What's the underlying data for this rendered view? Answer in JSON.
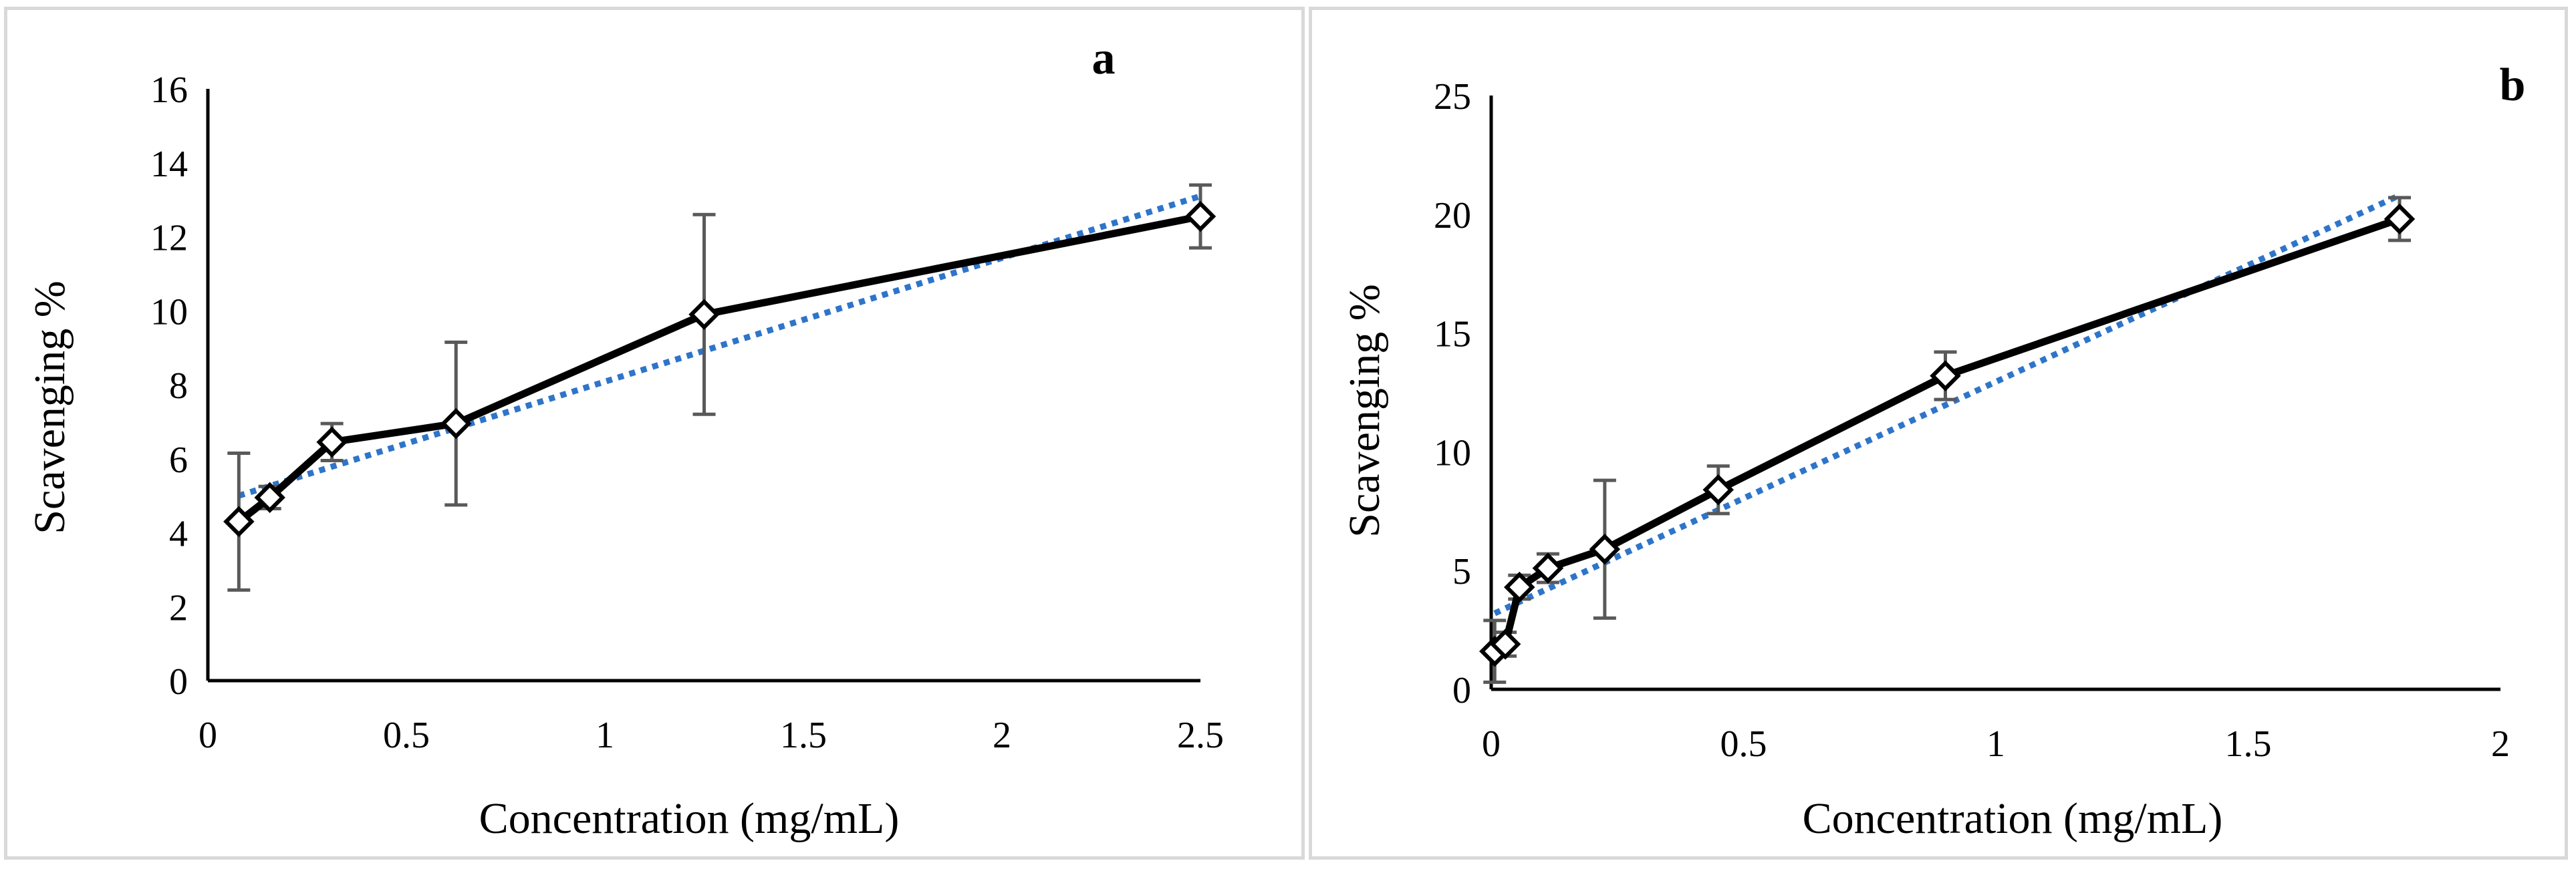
{
  "chart_data": [
    {
      "type": "line",
      "panel_label": "a",
      "title": "",
      "xlabel": "Concentration (mg/mL)",
      "ylabel": "Scavenging %",
      "xlim": [
        0,
        2.5
      ],
      "ylim": [
        0,
        16
      ],
      "xticks": [
        0,
        0.5,
        1,
        1.5,
        2,
        2.5
      ],
      "xtick_labels": [
        "0",
        "0.5",
        "1",
        "1.5",
        "2",
        "2.5"
      ],
      "yticks": [
        0,
        2,
        4,
        6,
        8,
        10,
        12,
        14,
        16
      ],
      "ytick_labels": [
        "0",
        "2",
        "4",
        "6",
        "8",
        "10",
        "12",
        "14",
        "16"
      ],
      "grid": false,
      "series": [
        {
          "name": "Scavenging",
          "marker": "diamond",
          "line_color": "#000000",
          "x": [
            0.078,
            0.156,
            0.3125,
            0.625,
            1.25,
            2.5
          ],
          "y": [
            4.3,
            4.95,
            6.45,
            6.95,
            9.9,
            12.55
          ],
          "error": [
            1.85,
            0.3,
            0.5,
            2.2,
            2.7,
            0.85
          ]
        }
      ],
      "trendline": {
        "style": "dotted",
        "color": "#2e75c9",
        "from": [
          0.078,
          5.0
        ],
        "to": [
          2.5,
          13.1
        ]
      }
    },
    {
      "type": "line",
      "panel_label": "b",
      "title": "",
      "xlabel": "Concentration (mg/mL)",
      "ylabel": "Scavenging %",
      "xlim": [
        0,
        2
      ],
      "ylim": [
        0,
        25
      ],
      "xticks": [
        0,
        0.5,
        1,
        1.5,
        2
      ],
      "xtick_labels": [
        "0",
        "0.5",
        "1",
        "1.5",
        "2"
      ],
      "yticks": [
        0,
        5,
        10,
        15,
        20,
        25
      ],
      "ytick_labels": [
        "0",
        "5",
        "10",
        "15",
        "20",
        "25"
      ],
      "grid": false,
      "series": [
        {
          "name": "Scavenging",
          "marker": "diamond",
          "line_color": "#000000",
          "x": [
            0.007,
            0.028,
            0.056,
            0.1125,
            0.225,
            0.45,
            0.9,
            1.8
          ],
          "y": [
            1.6,
            1.9,
            4.3,
            5.1,
            5.9,
            8.4,
            13.2,
            19.8
          ],
          "error": [
            1.3,
            0.5,
            0.5,
            0.6,
            2.9,
            1.0,
            1.0,
            0.9
          ]
        }
      ],
      "trendline": {
        "style": "dotted",
        "color": "#2e75c9",
        "from": [
          0.007,
          3.2
        ],
        "to": [
          1.8,
          20.8
        ]
      }
    }
  ]
}
